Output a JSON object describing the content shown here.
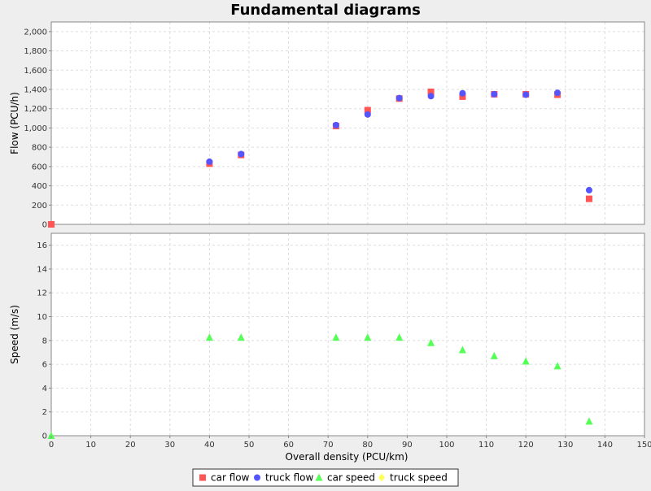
{
  "chart_data": {
    "type": "scatter",
    "title": "Fundamental diagrams",
    "xlabel": "Overall density (PCU/km)",
    "x_ticks": [
      "0",
      "10",
      "20",
      "30",
      "40",
      "50",
      "60",
      "70",
      "80",
      "90",
      "100",
      "110",
      "120",
      "130",
      "140",
      "150"
    ],
    "xlim": [
      0,
      150
    ],
    "grid": true,
    "legend_position": "bottom-center",
    "panels": [
      {
        "id": "flow",
        "ylabel": "Flow (PCU/h)",
        "ylim": [
          0,
          2100
        ],
        "y_ticks": [
          {
            "value": 0,
            "label": "0"
          },
          {
            "value": 200,
            "label": "200"
          },
          {
            "value": 400,
            "label": "400"
          },
          {
            "value": 600,
            "label": "600"
          },
          {
            "value": 800,
            "label": "800"
          },
          {
            "value": 1000,
            "label": "1,000"
          },
          {
            "value": 1200,
            "label": "1,200"
          },
          {
            "value": 1400,
            "label": "1,400"
          },
          {
            "value": 1600,
            "label": "1,600"
          },
          {
            "value": 1800,
            "label": "1,800"
          },
          {
            "value": 2000,
            "label": "2,000"
          }
        ],
        "series": [
          {
            "name": "car flow",
            "marker": "square",
            "color": "#ff5555",
            "points": [
              [
                0,
                0
              ],
              [
                40,
                630
              ],
              [
                48,
                720
              ],
              [
                72,
                1020
              ],
              [
                80,
                1185
              ],
              [
                88,
                1305
              ],
              [
                96,
                1375
              ],
              [
                104,
                1325
              ],
              [
                112,
                1350
              ],
              [
                120,
                1350
              ],
              [
                128,
                1345
              ],
              [
                136,
                265
              ]
            ]
          },
          {
            "name": "truck flow",
            "marker": "circle",
            "color": "#5555ff",
            "points": [
              [
                40,
                650
              ],
              [
                48,
                730
              ],
              [
                72,
                1030
              ],
              [
                80,
                1140
              ],
              [
                88,
                1310
              ],
              [
                96,
                1330
              ],
              [
                104,
                1360
              ],
              [
                112,
                1350
              ],
              [
                120,
                1345
              ],
              [
                128,
                1365
              ],
              [
                136,
                355
              ]
            ]
          }
        ]
      },
      {
        "id": "speed",
        "ylabel": "Speed (m/s)",
        "ylim": [
          0,
          17
        ],
        "y_ticks": [
          {
            "value": 0,
            "label": "0"
          },
          {
            "value": 2,
            "label": "2"
          },
          {
            "value": 4,
            "label": "4"
          },
          {
            "value": 6,
            "label": "6"
          },
          {
            "value": 8,
            "label": "8"
          },
          {
            "value": 10,
            "label": "10"
          },
          {
            "value": 12,
            "label": "12"
          },
          {
            "value": 14,
            "label": "14"
          },
          {
            "value": 16,
            "label": "16"
          }
        ],
        "series": [
          {
            "name": "car speed",
            "marker": "triangle",
            "color": "#55ff55",
            "points": [
              [
                0,
                0
              ],
              [
                40,
                8.25
              ],
              [
                48,
                8.25
              ],
              [
                72,
                8.25
              ],
              [
                80,
                8.25
              ],
              [
                88,
                8.25
              ],
              [
                96,
                7.8
              ],
              [
                104,
                7.2
              ],
              [
                112,
                6.7
              ],
              [
                120,
                6.25
              ],
              [
                128,
                5.85
              ],
              [
                136,
                1.2
              ]
            ]
          },
          {
            "name": "truck speed",
            "marker": "diamond",
            "color": "#ffff55",
            "points": []
          }
        ]
      }
    ],
    "legend": [
      {
        "name": "car flow",
        "marker": "square",
        "color": "#ff5555"
      },
      {
        "name": "truck flow",
        "marker": "circle",
        "color": "#5555ff"
      },
      {
        "name": "car speed",
        "marker": "triangle",
        "color": "#55ff55"
      },
      {
        "name": "truck speed",
        "marker": "diamond",
        "color": "#ffff55"
      }
    ]
  }
}
